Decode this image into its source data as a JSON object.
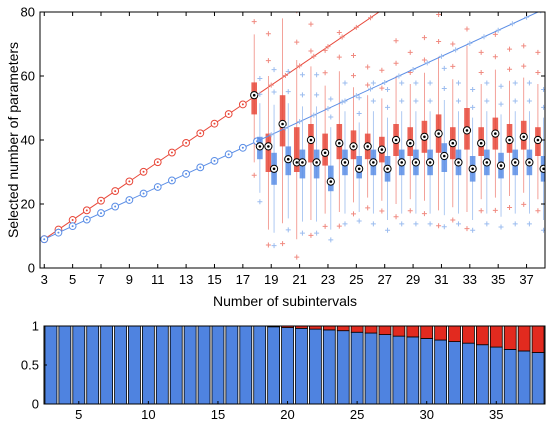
{
  "chart_data": [
    {
      "type": "boxplot",
      "xlabel": "Number of subintervals",
      "ylabel": "Selected number of parameters",
      "xlim": [
        2.7,
        38.3
      ],
      "ylim": [
        0,
        80
      ],
      "x_ticks": [
        3,
        5,
        7,
        9,
        11,
        13,
        15,
        17,
        19,
        21,
        23,
        25,
        27,
        29,
        31,
        33,
        35,
        37
      ],
      "y_ticks": [
        0,
        20,
        40,
        60,
        80
      ],
      "grid": false,
      "series": [
        {
          "color": "#e8483a",
          "reference_line": {
            "x": [
              3,
              26.6
            ],
            "y": [
              9,
              80
            ]
          },
          "boxes": [
            {
              "x": 17.8,
              "median": 54,
              "q1": 48,
              "q3": 58
            },
            {
              "x": 18.8,
              "median": 38,
              "q1": 30,
              "q3": 42
            },
            {
              "x": 19.8,
              "median": 45,
              "q1": 38,
              "q3": 54
            },
            {
              "x": 20.8,
              "median": 33,
              "q1": 30,
              "q3": 44
            },
            {
              "x": 21.8,
              "median": 40,
              "q1": 33,
              "q3": 45
            },
            {
              "x": 22.8,
              "median": 36,
              "q1": 32,
              "q3": 42
            },
            {
              "x": 23.8,
              "median": 39,
              "q1": 34,
              "q3": 45
            },
            {
              "x": 24.8,
              "median": 38,
              "q1": 34,
              "q3": 43
            },
            {
              "x": 25.8,
              "median": 38,
              "q1": 34,
              "q3": 42
            },
            {
              "x": 26.8,
              "median": 37,
              "q1": 33,
              "q3": 41
            },
            {
              "x": 27.8,
              "median": 40,
              "q1": 35,
              "q3": 45
            },
            {
              "x": 28.8,
              "median": 39,
              "q1": 35,
              "q3": 44
            },
            {
              "x": 29.8,
              "median": 41,
              "q1": 36,
              "q3": 46
            },
            {
              "x": 30.8,
              "median": 42,
              "q1": 36,
              "q3": 48
            },
            {
              "x": 31.8,
              "median": 39,
              "q1": 34,
              "q3": 44
            },
            {
              "x": 32.8,
              "median": 43,
              "q1": 37,
              "q3": 50
            },
            {
              "x": 33.8,
              "median": 39,
              "q1": 35,
              "q3": 44
            },
            {
              "x": 34.8,
              "median": 42,
              "q1": 37,
              "q3": 47
            },
            {
              "x": 35.8,
              "median": 40,
              "q1": 36,
              "q3": 45
            },
            {
              "x": 36.8,
              "median": 41,
              "q1": 37,
              "q3": 46
            },
            {
              "x": 37.8,
              "median": 40,
              "q1": 35,
              "q3": 44
            }
          ]
        },
        {
          "color": "#5b8ee6",
          "reference_line": {
            "x": [
              3,
              37.8
            ],
            "y": [
              9,
              80
            ]
          },
          "boxes": [
            {
              "x": 18.2,
              "median": 38,
              "q1": 34,
              "q3": 41
            },
            {
              "x": 19.2,
              "median": 31,
              "q1": 26,
              "q3": 36
            },
            {
              "x": 20.2,
              "median": 34,
              "q1": 29,
              "q3": 38
            },
            {
              "x": 21.2,
              "median": 33,
              "q1": 28,
              "q3": 37
            },
            {
              "x": 22.2,
              "median": 33,
              "q1": 28,
              "q3": 37
            },
            {
              "x": 23.2,
              "median": 27,
              "q1": 24,
              "q3": 32
            },
            {
              "x": 24.2,
              "median": 33,
              "q1": 29,
              "q3": 37
            },
            {
              "x": 25.2,
              "median": 31,
              "q1": 28,
              "q3": 35
            },
            {
              "x": 26.2,
              "median": 33,
              "q1": 29,
              "q3": 37
            },
            {
              "x": 27.2,
              "median": 31,
              "q1": 27,
              "q3": 35
            },
            {
              "x": 28.2,
              "median": 33,
              "q1": 29,
              "q3": 37
            },
            {
              "x": 29.2,
              "median": 33,
              "q1": 29,
              "q3": 37
            },
            {
              "x": 30.2,
              "median": 33,
              "q1": 29,
              "q3": 37
            },
            {
              "x": 31.2,
              "median": 35,
              "q1": 30,
              "q3": 39
            },
            {
              "x": 32.2,
              "median": 33,
              "q1": 29,
              "q3": 37
            },
            {
              "x": 33.2,
              "median": 31,
              "q1": 27,
              "q3": 35
            },
            {
              "x": 34.2,
              "median": 33,
              "q1": 29,
              "q3": 37
            },
            {
              "x": 35.2,
              "median": 32,
              "q1": 28,
              "q3": 36
            },
            {
              "x": 36.2,
              "median": 33,
              "q1": 29,
              "q3": 37
            },
            {
              "x": 37.2,
              "median": 33,
              "q1": 29,
              "q3": 37
            },
            {
              "x": 38.2,
              "median": 31,
              "q1": 27,
              "q3": 35
            }
          ]
        }
      ]
    },
    {
      "type": "stacked-bar",
      "xlim": [
        2.5,
        38.5
      ],
      "ylim": [
        0,
        1
      ],
      "x_ticks": [
        5,
        10,
        15,
        20,
        25,
        30,
        35
      ],
      "y_ticks": [
        0,
        0.5,
        1
      ],
      "x": [
        3,
        4,
        5,
        6,
        7,
        8,
        9,
        10,
        11,
        12,
        13,
        14,
        15,
        16,
        17,
        18,
        19,
        20,
        21,
        22,
        23,
        24,
        25,
        26,
        27,
        28,
        29,
        30,
        31,
        32,
        33,
        34,
        35,
        36,
        37,
        38
      ],
      "series": [
        {
          "color": "#4f83e0",
          "values": [
            1,
            1,
            1,
            1,
            1,
            1,
            1,
            1,
            1,
            1,
            1,
            1,
            1,
            1,
            1,
            1,
            0.99,
            0.98,
            0.97,
            0.96,
            0.95,
            0.94,
            0.92,
            0.91,
            0.89,
            0.87,
            0.86,
            0.84,
            0.82,
            0.8,
            0.78,
            0.76,
            0.73,
            0.7,
            0.68,
            0.66
          ]
        },
        {
          "color": "#e22a1f",
          "values": [
            0,
            0,
            0,
            0,
            0,
            0,
            0,
            0,
            0,
            0,
            0,
            0,
            0,
            0,
            0,
            0,
            0.01,
            0.02,
            0.03,
            0.04,
            0.05,
            0.06,
            0.08,
            0.09,
            0.11,
            0.13,
            0.14,
            0.16,
            0.18,
            0.2,
            0.22,
            0.24,
            0.27,
            0.3,
            0.32,
            0.34
          ]
        }
      ]
    }
  ]
}
